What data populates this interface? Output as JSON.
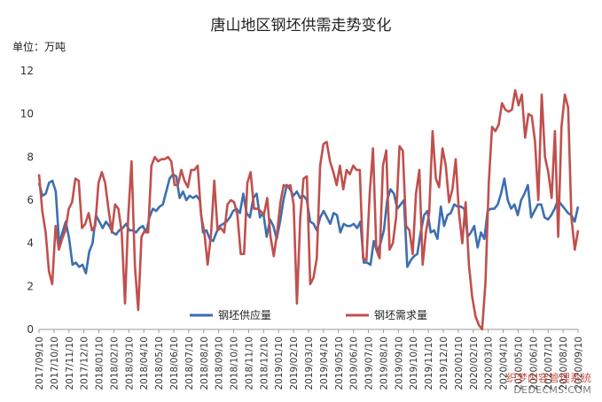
{
  "title": "唐山地区钢坯供需走势变化",
  "unit_label": "单位：万吨",
  "watermark": {
    "line1": "织梦内容管理系统",
    "line2": "DEDECMS.COM"
  },
  "chart_data": {
    "type": "line",
    "title": "唐山地区钢坯供需走势变化",
    "ylabel": "单位：万吨",
    "ylim": [
      0,
      12
    ],
    "yticks": [
      0,
      2,
      4,
      6,
      8,
      10,
      12
    ],
    "grid": false,
    "legend_position": "bottom",
    "x_tick_labels": [
      "2017/09/10",
      "2017/10/10",
      "2017/11/10",
      "2017/12/10",
      "2018/01/10",
      "2018/02/10",
      "2018/03/10",
      "2018/04/10",
      "2018/05/10",
      "2018/06/10",
      "2018/07/10",
      "2018/08/10",
      "2018/09/10",
      "2018/10/10",
      "2018/11/10",
      "2018/12/10",
      "2019/01/10",
      "2019/02/10",
      "2019/03/10",
      "2019/04/10",
      "2019/05/10",
      "2019/06/10",
      "2019/07/10",
      "2019/08/10",
      "2019/09/10",
      "2019/10/10",
      "2019/11/10",
      "2019/12/10",
      "2020/01/10",
      "2020/02/10",
      "2020/03/10",
      "2020/04/10",
      "2020/05/10",
      "2020/06/10",
      "2020/07/10",
      "2020/08/10",
      "2020/09/10"
    ],
    "series": [
      {
        "name": "钢坯供应量",
        "color": "#3c6fb0",
        "values": [
          6.8,
          6.2,
          6.3,
          6.8,
          6.9,
          6.4,
          4.0,
          4.5,
          5.0,
          4.2,
          3.0,
          3.1,
          2.9,
          3.0,
          2.6,
          3.6,
          4.0,
          5.3,
          5.0,
          4.7,
          5.0,
          4.8,
          4.5,
          4.4,
          4.6,
          4.7,
          4.9,
          4.6,
          4.6,
          4.5,
          4.7,
          4.8,
          4.5,
          5.2,
          5.6,
          5.5,
          5.7,
          5.8,
          6.4,
          7.0,
          7.2,
          7.1,
          6.1,
          6.4,
          6.0,
          6.2,
          6.1,
          6.2,
          6.0,
          4.5,
          4.6,
          4.2,
          4.1,
          4.5,
          4.8,
          4.9,
          5.0,
          5.2,
          5.5,
          5.6,
          5.4,
          6.3,
          5.4,
          5.2,
          6.1,
          6.3,
          5.2,
          5.4,
          4.3,
          5.1,
          4.8,
          4.2,
          5.0,
          6.0,
          6.7,
          6.5,
          6.2,
          6.4,
          6.1,
          6.2,
          6.0,
          5.0,
          4.9,
          4.6,
          5.2,
          5.5,
          5.2,
          4.9,
          5.4,
          5.3,
          4.5,
          4.9,
          4.8,
          4.8,
          4.9,
          4.7,
          5.0,
          3.1,
          3.1,
          3.0,
          4.1,
          3.6,
          4.0,
          4.6,
          6.0,
          6.5,
          6.3,
          5.6,
          5.8,
          6.0,
          2.9,
          3.2,
          3.4,
          3.5,
          4.5,
          5.3,
          5.5,
          4.5,
          4.6,
          4.2,
          5.7,
          4.8,
          5.3,
          5.4,
          5.8,
          5.7,
          5.7,
          5.6,
          4.3,
          4.5,
          4.8,
          3.8,
          4.5,
          4.2,
          5.5,
          5.6,
          5.6,
          5.8,
          6.3,
          7.0,
          6.0,
          5.6,
          5.8,
          5.3,
          6.0,
          6.3,
          6.7,
          5.2,
          5.5,
          5.8,
          5.8,
          5.2,
          5.1,
          5.3,
          5.6,
          6.0,
          5.8,
          5.6,
          5.4,
          5.3,
          5.0,
          5.7
        ]
      },
      {
        "name": "钢坯需求量",
        "color": "#c0504d",
        "values": [
          7.2,
          5.5,
          4.5,
          2.7,
          2.1,
          4.8,
          3.7,
          4.2,
          4.6,
          5.6,
          5.9,
          7.0,
          6.9,
          4.7,
          4.9,
          5.4,
          4.6,
          4.8,
          6.8,
          7.3,
          6.8,
          5.6,
          4.5,
          5.8,
          5.6,
          4.5,
          1.2,
          5.3,
          7.8,
          2.9,
          0.9,
          4.3,
          4.6,
          4.5,
          7.6,
          8.0,
          7.8,
          7.9,
          7.9,
          8.0,
          7.8,
          6.7,
          6.7,
          7.4,
          6.9,
          6.6,
          7.4,
          7.4,
          7.6,
          5.3,
          4.5,
          3.0,
          4.4,
          6.9,
          4.6,
          4.7,
          4.5,
          5.8,
          6.0,
          5.9,
          5.3,
          3.5,
          3.5,
          6.8,
          7.3,
          5.6,
          5.6,
          5.5,
          5.3,
          6.1,
          4.3,
          3.4,
          4.5,
          5.9,
          6.7,
          6.6,
          6.7,
          5.8,
          1.2,
          5.2,
          7.0,
          7.1,
          2.1,
          2.4,
          3.3,
          7.6,
          8.6,
          8.7,
          7.8,
          7.3,
          6.7,
          7.6,
          6.5,
          7.4,
          7.2,
          7.6,
          7.4,
          7.4,
          3.3,
          3.2,
          6.3,
          8.4,
          3.7,
          3.3,
          7.6,
          8.3,
          3.7,
          4.0,
          5.2,
          8.5,
          8.3,
          4.8,
          4.6,
          3.5,
          6.3,
          7.4,
          3.0,
          4.5,
          5.4,
          9.2,
          7.0,
          6.6,
          8.4,
          7.6,
          5.9,
          6.5,
          7.9,
          5.4,
          4.0,
          5.9,
          3.0,
          1.5,
          0.6,
          0.2,
          0.0,
          2.2,
          6.8,
          9.4,
          9.2,
          9.5,
          10.5,
          10.2,
          10.1,
          10.2,
          11.1,
          10.4,
          10.9,
          8.9,
          10.0,
          9.9,
          8.7,
          6.0,
          10.9,
          8.0,
          7.3,
          6.1,
          9.2,
          4.3,
          9.4,
          10.9,
          10.3,
          5.2,
          3.7,
          4.6
        ]
      }
    ]
  }
}
